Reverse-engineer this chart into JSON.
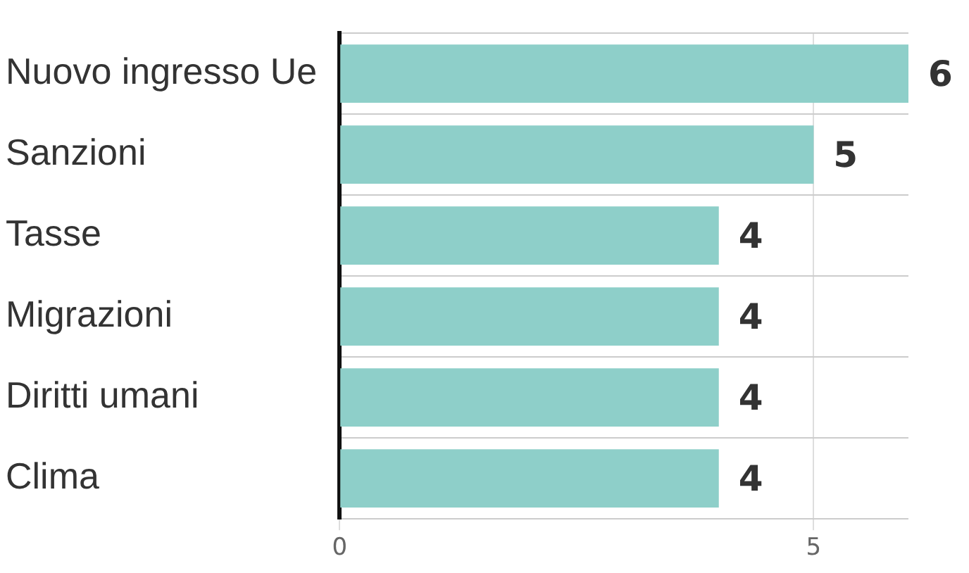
{
  "chart_data": {
    "type": "bar",
    "orientation": "horizontal",
    "categories": [
      "Nuovo ingresso Ue",
      "Sanzioni",
      "Tasse",
      "Migrazioni",
      "Diritti umani",
      "Clima"
    ],
    "values": [
      6,
      5,
      4,
      4,
      4,
      4
    ],
    "color": "#8ecfc9",
    "xlim": [
      0,
      6
    ],
    "xticks": [
      0,
      5
    ],
    "grid": true,
    "data_labels": true
  }
}
